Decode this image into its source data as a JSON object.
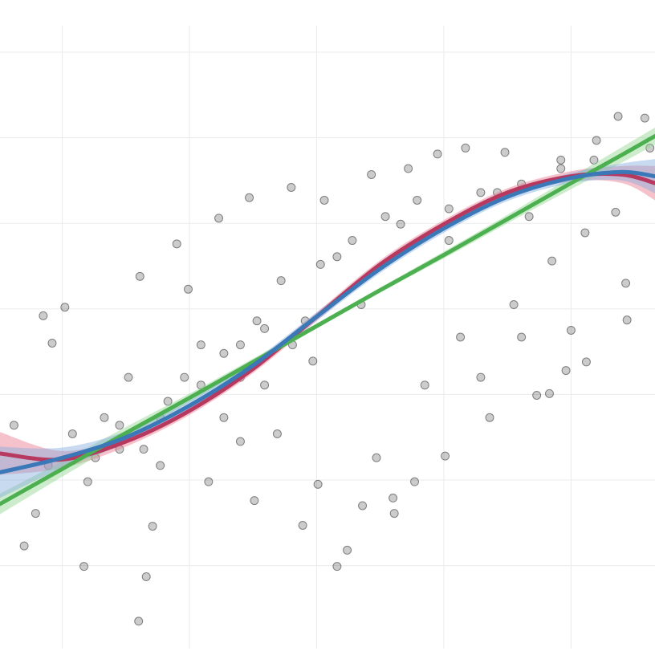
{
  "chart_data": {
    "type": "scatter",
    "xlim": [
      -2.49,
      2.66
    ],
    "ylim": [
      -3.97,
      3.31
    ],
    "xticks": [
      -2,
      -1,
      0,
      1,
      2
    ],
    "yticks": [
      -3,
      -2,
      -1,
      0,
      1,
      2,
      3
    ],
    "grid": true,
    "point_color": "#000000",
    "x": [
      -2.3,
      -2.38,
      -2.15,
      -1.98,
      -2.08,
      -1.4,
      -1.34,
      -1.83,
      -2.21,
      -2.11,
      -1.92,
      -1.8,
      -1.67,
      -1.55,
      -1.48,
      -1.39,
      -1.29,
      -1.23,
      -1.17,
      -1.1,
      -1.01,
      -0.91,
      -0.85,
      -0.77,
      -0.73,
      -0.6,
      -0.53,
      -0.49,
      -0.41,
      -0.31,
      -0.2,
      -0.11,
      -0.03,
      0.01,
      0.06,
      0.16,
      0.16,
      0.24,
      0.35,
      0.36,
      0.43,
      0.47,
      0.6,
      0.61,
      0.66,
      0.72,
      0.77,
      0.85,
      0.95,
      1.01,
      1.04,
      1.13,
      1.17,
      1.29,
      1.36,
      1.42,
      1.48,
      1.55,
      1.61,
      1.67,
      1.73,
      1.83,
      1.85,
      1.92,
      1.96,
      2.0,
      2.11,
      2.12,
      2.2,
      2.35,
      2.37,
      2.43,
      2.44,
      2.58,
      2.62,
      -0.6,
      -0.47,
      -0.28,
      -0.09,
      0.03,
      0.28,
      0.54,
      0.79,
      1.04,
      1.29,
      1.61,
      1.92,
      2.18,
      -1.23,
      -1.55,
      -1.74,
      -0.91,
      -0.73,
      -1.04,
      -1.36,
      -0.41,
      -0.19,
      -0.6
    ],
    "y": [
      -2.77,
      -1.36,
      -0.08,
      0.02,
      -0.4,
      -3.65,
      -3.13,
      -3.01,
      -2.39,
      -1.83,
      -1.46,
      -2.02,
      -1.27,
      -1.64,
      -0.8,
      0.38,
      -2.54,
      -1.83,
      -1.08,
      0.76,
      0.23,
      -0.42,
      -2.02,
      1.06,
      -1.27,
      -0.8,
      1.3,
      -2.24,
      -0.23,
      -1.46,
      1.42,
      -2.53,
      -0.61,
      -2.05,
      1.27,
      -3.01,
      0.61,
      -2.82,
      0.05,
      -2.3,
      1.57,
      -1.74,
      -2.21,
      -2.39,
      0.99,
      1.64,
      -2.02,
      -0.89,
      1.81,
      -1.72,
      0.8,
      -0.33,
      1.88,
      -0.8,
      -1.27,
      1.36,
      1.83,
      0.05,
      -0.33,
      1.08,
      -1.01,
      -0.99,
      0.56,
      1.74,
      -0.72,
      -0.25,
      0.89,
      -0.62,
      1.97,
      1.13,
      2.25,
      0.3,
      -0.13,
      2.23,
      1.88,
      -0.42,
      -0.14,
      0.33,
      -0.14,
      0.52,
      0.8,
      1.08,
      1.27,
      1.17,
      1.36,
      1.46,
      1.64,
      1.74,
      -1.27,
      -1.36,
      -1.74,
      -0.89,
      -0.52,
      -0.8,
      -1.64,
      -0.89,
      -0.42,
      -1.55
    ],
    "fit_x": [
      -2.49,
      -2,
      -1.5,
      -1,
      -0.5,
      0,
      0.5,
      1,
      1.5,
      2,
      2.4,
      2.66
    ],
    "fits": [
      {
        "color": "#b8395f",
        "band_color": "#e8788f",
        "values": [
          -1.69,
          -1.76,
          -1.55,
          -1.19,
          -0.7,
          -0.09,
          0.52,
          0.99,
          1.36,
          1.55,
          1.57,
          1.47
        ],
        "lower": [
          -1.94,
          -1.86,
          -1.61,
          -1.24,
          -0.75,
          -0.14,
          0.47,
          0.94,
          1.31,
          1.49,
          1.47,
          1.27
        ],
        "upper": [
          -1.44,
          -1.66,
          -1.49,
          -1.14,
          -0.65,
          -0.04,
          0.57,
          1.04,
          1.41,
          1.61,
          1.67,
          1.67
        ]
      },
      {
        "color": "#4caf50",
        "band_color": "#8fd48f",
        "values": [
          -2.28,
          -1.87,
          -1.45,
          -1.04,
          -0.62,
          -0.2,
          0.22,
          0.63,
          1.05,
          1.47,
          1.8,
          2.02
        ],
        "lower": [
          -2.4,
          -1.96,
          -1.52,
          -1.09,
          -0.66,
          -0.23,
          0.19,
          0.59,
          1.0,
          1.4,
          1.71,
          1.92
        ],
        "upper": [
          -2.16,
          -1.78,
          -1.38,
          -0.99,
          -0.58,
          -0.17,
          0.25,
          0.67,
          1.1,
          1.54,
          1.89,
          2.12
        ]
      },
      {
        "color": "#3a78b8",
        "band_color": "#86aede",
        "values": [
          -1.91,
          -1.74,
          -1.5,
          -1.13,
          -0.66,
          -0.09,
          0.47,
          0.94,
          1.31,
          1.53,
          1.6,
          1.55
        ],
        "lower": [
          -2.21,
          -1.86,
          -1.57,
          -1.19,
          -0.71,
          -0.14,
          0.42,
          0.89,
          1.26,
          1.47,
          1.5,
          1.35
        ],
        "upper": [
          -1.61,
          -1.62,
          -1.43,
          -1.07,
          -0.61,
          -0.04,
          0.52,
          0.99,
          1.36,
          1.59,
          1.7,
          1.75
        ]
      }
    ]
  }
}
